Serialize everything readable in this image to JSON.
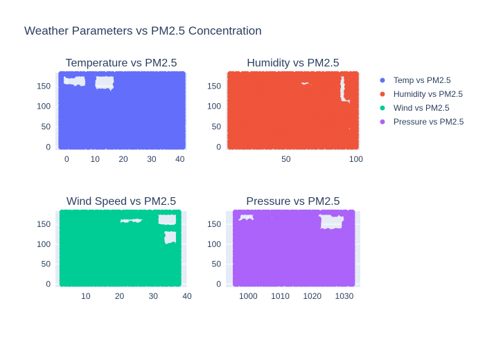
{
  "chart_data": {
    "type": "scatter",
    "title": "Weather Parameters vs PM2.5 Concentration",
    "legend": {
      "position": "right",
      "entries": [
        "Temp vs PM2.5",
        "Humidity vs PM2.5",
        "Wind vs PM2.5",
        "Pressure vs PM2.5"
      ]
    },
    "panels": [
      {
        "id": "temp",
        "title": "Temperature vs PM2.5",
        "series_name": "Temp vs PM2.5",
        "color": "#636efa",
        "xlim": [
          -4,
          42.5
        ],
        "ylim": [
          -8,
          183
        ],
        "xticks": [
          0,
          10,
          20,
          30,
          40
        ],
        "xtick_labels": [
          "0",
          "10",
          "20",
          "30",
          "40"
        ],
        "yticks": [
          0,
          50,
          100,
          150
        ],
        "ytick_labels": [
          "0",
          "50",
          "100",
          "150"
        ],
        "x_range": [
          -2,
          41
        ],
        "y_range": [
          0,
          180
        ],
        "gaps": [
          [
            -1.5,
            4,
            150,
            175
          ],
          [
            3,
            7,
            148,
            178
          ],
          [
            10,
            17,
            138,
            178
          ],
          [
            2,
            3,
            100,
            103
          ]
        ]
      },
      {
        "id": "humidity",
        "title": "Humidity vs PM2.5",
        "series_name": "Humidity vs PM2.5",
        "color": "#ef553b",
        "xlim": [
          7,
          103
        ],
        "ylim": [
          -8,
          183
        ],
        "xticks": [
          50,
          100
        ],
        "xtick_labels": [
          "50",
          "100"
        ],
        "yticks": [
          0,
          50,
          100,
          150
        ],
        "ytick_labels": [
          "0",
          "50",
          "100",
          "150"
        ],
        "x_range": [
          10,
          100
        ],
        "y_range": [
          0,
          180
        ],
        "gaps": [
          [
            88,
            93,
            110,
            178
          ],
          [
            94,
            96,
            40,
            120
          ],
          [
            60,
            70,
            150,
            160
          ]
        ]
      },
      {
        "id": "wind",
        "title": "Wind Speed vs PM2.5",
        "series_name": "Wind vs PM2.5",
        "color": "#00cc96",
        "xlim": [
          1,
          40
        ],
        "ylim": [
          -8,
          183
        ],
        "xticks": [
          10,
          20,
          30,
          40
        ],
        "xtick_labels": [
          "10",
          "20",
          "30",
          "40"
        ],
        "yticks": [
          0,
          50,
          100,
          150
        ],
        "ytick_labels": [
          "0",
          "50",
          "100",
          "150"
        ],
        "x_range": [
          3,
          37.5
        ],
        "y_range": [
          0,
          180
        ],
        "gaps": [
          [
            31,
            37,
            145,
            178
          ],
          [
            33,
            37,
            100,
            135
          ],
          [
            20,
            27,
            152,
            168
          ]
        ]
      },
      {
        "id": "pressure",
        "title": "Pressure vs PM2.5",
        "series_name": "Pressure vs PM2.5",
        "color": "#ab63fa",
        "xlim": [
          993,
          1035
        ],
        "ylim": [
          -8,
          183
        ],
        "xticks": [
          1000,
          1010,
          1020,
          1030
        ],
        "xtick_labels": [
          "1000",
          "1010",
          "1020",
          "1030"
        ],
        "yticks": [
          0,
          50,
          100,
          150
        ],
        "ytick_labels": [
          "0",
          "50",
          "100",
          "150"
        ],
        "x_range": [
          996,
          1032.5
        ],
        "y_range": [
          0,
          180
        ],
        "gaps": [
          [
            997,
            1002,
            158,
            178
          ],
          [
            1022,
            1030,
            135,
            175
          ],
          [
            1007,
            1008,
            160,
            170
          ]
        ]
      }
    ]
  }
}
